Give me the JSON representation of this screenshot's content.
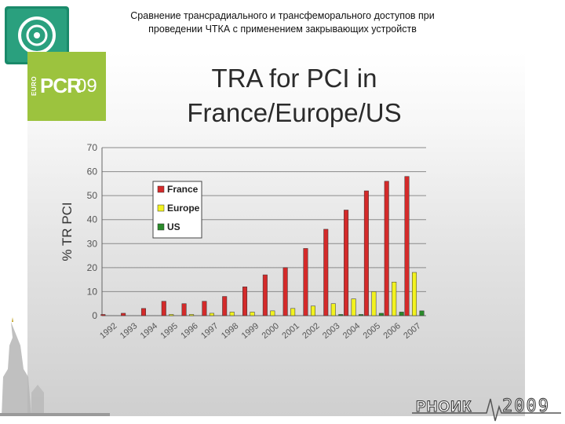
{
  "header": {
    "title_line1": "Сравнение трансрадиального и трансфеморального доступов при",
    "title_line2": "проведении ЧТКА с применением закрывающих устройств"
  },
  "badge": {
    "euro": "EURO",
    "pcr": "PCR",
    "year": "09"
  },
  "footer": {
    "brand": "РНОИК",
    "year": "2009"
  },
  "colors": {
    "france": "#d42a2a",
    "europe": "#f2f21f",
    "us": "#2a8a2a",
    "badge": "#9cc33e"
  },
  "chart_data": {
    "type": "bar",
    "title_line1": "TRA for PCI in",
    "title_line2": "France/Europe/US",
    "xlabel": "",
    "ylabel": "% TR PCI",
    "ylim": [
      0,
      70
    ],
    "yticks": [
      0,
      10,
      20,
      30,
      40,
      50,
      60,
      70
    ],
    "grid": true,
    "legend_position": "top-left",
    "categories": [
      "1992",
      "1993",
      "1994",
      "1995",
      "1996",
      "1997",
      "1998",
      "1999",
      "2000",
      "2001",
      "2002",
      "2003",
      "2004",
      "2005",
      "2006",
      "2007"
    ],
    "series": [
      {
        "name": "France",
        "values": [
          0.5,
          1,
          3,
          6,
          5,
          6,
          8,
          12,
          17,
          20,
          28,
          36,
          44,
          52,
          56,
          58
        ]
      },
      {
        "name": "Europe",
        "values": [
          0,
          0,
          0,
          0.5,
          0.5,
          1,
          1.5,
          1.5,
          2,
          3,
          4,
          5,
          7,
          10,
          14,
          18
        ]
      },
      {
        "name": "US",
        "values": [
          0,
          0,
          0,
          0,
          0,
          0,
          0,
          0,
          0,
          0,
          0,
          0.5,
          0.5,
          1,
          1.5,
          2
        ]
      }
    ]
  }
}
